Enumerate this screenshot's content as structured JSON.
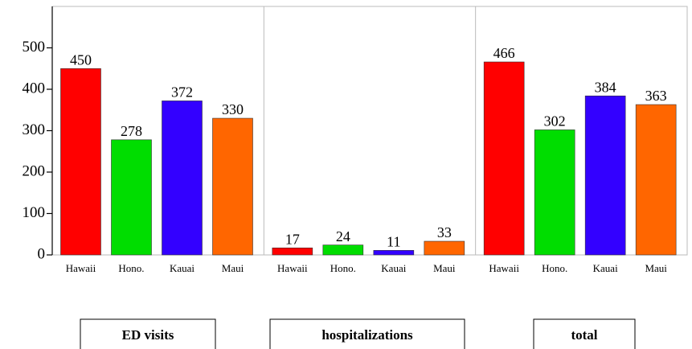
{
  "chart_data": {
    "type": "bar",
    "categories": [
      "Hawaii",
      "Hono.",
      "Kauai",
      "Maui"
    ],
    "colors": [
      "#ff0000",
      "#00dd00",
      "#3300ff",
      "#ff6600"
    ],
    "series": [
      {
        "name": "ED visits",
        "values": [
          450,
          278,
          372,
          330
        ]
      },
      {
        "name": "hospitalizations",
        "values": [
          17,
          24,
          11,
          33
        ]
      },
      {
        "name": "total",
        "values": [
          466,
          302,
          384,
          363
        ]
      }
    ],
    "ylim": [
      0,
      600
    ],
    "yticks": [
      0,
      100,
      200,
      300,
      400,
      500
    ]
  }
}
